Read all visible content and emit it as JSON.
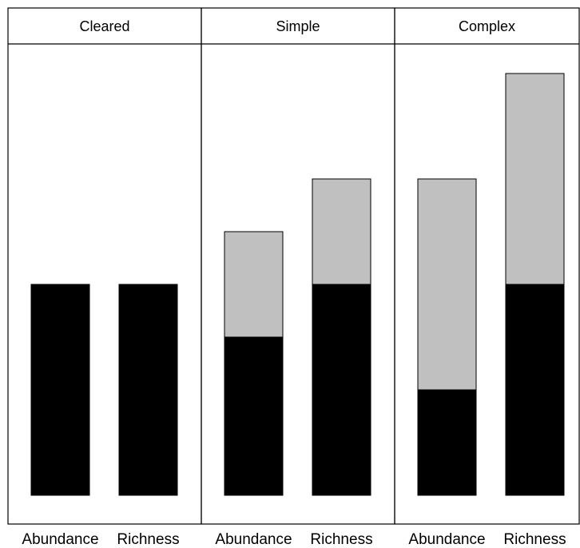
{
  "chart_data": {
    "type": "bar",
    "stacked": true,
    "panels": [
      {
        "title": "Cleared",
        "categories": [
          "Abundance",
          "Richness"
        ],
        "series": [
          {
            "color": "#000000",
            "values": [
              4,
              4
            ]
          },
          {
            "color": "#c0c0c0",
            "values": [
              0,
              0
            ]
          }
        ]
      },
      {
        "title": "Simple",
        "categories": [
          "Abundance",
          "Richness"
        ],
        "series": [
          {
            "color": "#000000",
            "values": [
              3,
              4
            ]
          },
          {
            "color": "#c0c0c0",
            "values": [
              2,
              2
            ]
          }
        ]
      },
      {
        "title": "Complex",
        "categories": [
          "Abundance",
          "Richness"
        ],
        "series": [
          {
            "color": "#000000",
            "values": [
              2,
              4
            ]
          },
          {
            "color": "#c0c0c0",
            "values": [
              4,
              4
            ]
          }
        ]
      }
    ],
    "ylim": [
      0,
      8
    ],
    "grid": false,
    "legend": "none"
  }
}
